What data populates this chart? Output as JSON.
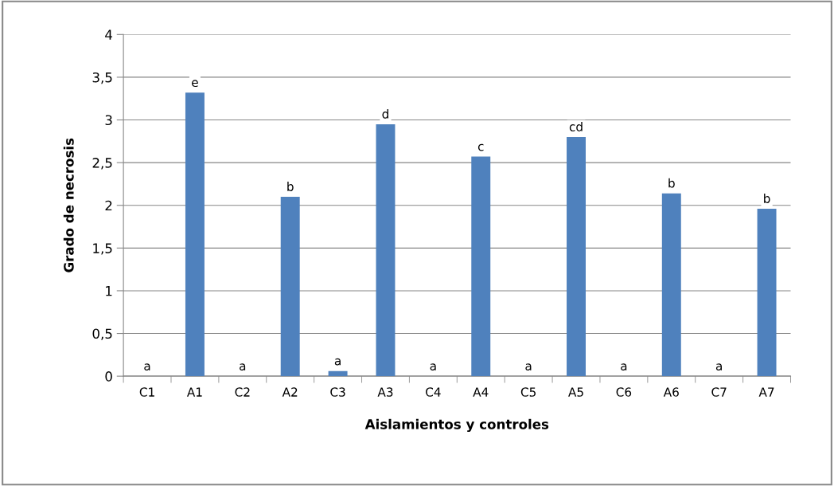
{
  "chart_data": {
    "type": "bar",
    "xlabel": "Aislamientos y controles",
    "ylabel": "Grado de necrosis",
    "categories": [
      "C1",
      "A1",
      "C2",
      "A2",
      "C3",
      "A3",
      "C4",
      "A4",
      "C5",
      "A5",
      "C6",
      "A6",
      "C7",
      "A7"
    ],
    "values": [
      0,
      3.32,
      0,
      2.1,
      0.06,
      2.95,
      0,
      2.57,
      0,
      2.8,
      0,
      2.14,
      0,
      1.96
    ],
    "value_labels": [
      "a",
      "e",
      "a",
      "b",
      "a",
      "d",
      "a",
      "c",
      "a",
      "cd",
      "a",
      "b",
      "a",
      "b"
    ],
    "color": "#4f81bd",
    "ylim": [
      0,
      4
    ],
    "yticks": [
      {
        "value": 0,
        "label": "0"
      },
      {
        "value": 0.5,
        "label": "0,5"
      },
      {
        "value": 1,
        "label": "1"
      },
      {
        "value": 1.5,
        "label": "1,5"
      },
      {
        "value": 2,
        "label": "2"
      },
      {
        "value": 2.5,
        "label": "2,5"
      },
      {
        "value": 3,
        "label": "3"
      },
      {
        "value": 3.5,
        "label": "3,5"
      },
      {
        "value": 4,
        "label": "4"
      }
    ],
    "grid": "y"
  }
}
